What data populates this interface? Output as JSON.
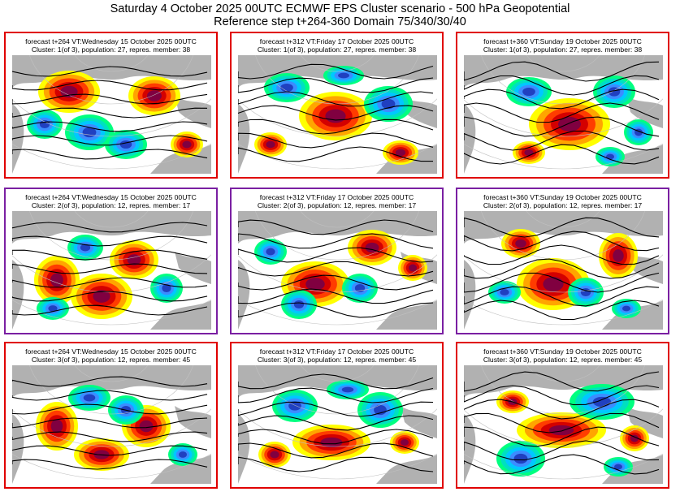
{
  "header": {
    "title": "Saturday 4 October 2025 00UTC ECMWF EPS Cluster scenario - 500 hPa Geopotential",
    "subtitle": "Reference step t+264-360 Domain 75/340/30/40"
  },
  "colors": {
    "cluster_border": [
      "#e00000",
      "#7a1fa2",
      "#e00000"
    ],
    "positive_anomaly": [
      "#ffff00",
      "#ffa500",
      "#ff3c00",
      "#d40000",
      "#800040"
    ],
    "negative_anomaly": [
      "#00ff80",
      "#00e0c0",
      "#00c8ff",
      "#3c8cff",
      "#2040c0"
    ],
    "land": "#a8a8a8",
    "contour": "#000000"
  },
  "panels": [
    {
      "line1": "forecast t+264 VT:Wednesday 15 October 2025 00UTC",
      "line2": "Cluster: 1(of 3), population: 27, repres. member: 38"
    },
    {
      "line1": "forecast t+312 VT:Friday 17 October 2025 00UTC",
      "line2": "Cluster: 1(of 3), population: 27, repres. member: 38"
    },
    {
      "line1": "forecast t+360 VT:Sunday 19 October 2025 00UTC",
      "line2": "Cluster: 1(of 3), population: 27, repres. member: 38"
    },
    {
      "line1": "forecast t+264 VT:Wednesday 15 October 2025 00UTC",
      "line2": "Cluster: 2(of 3), population: 12, repres. member: 17"
    },
    {
      "line1": "forecast t+312 VT:Friday 17 October 2025 00UTC",
      "line2": "Cluster: 2(of 3), population: 12, repres. member: 17"
    },
    {
      "line1": "forecast t+360 VT:Sunday 19 October 2025 00UTC",
      "line2": "Cluster: 2(of 3), population: 12, repres. member: 17"
    },
    {
      "line1": "forecast t+264 VT:Wednesday 15 October 2025 00UTC",
      "line2": "Cluster: 3(of 3), population: 12, repres. member: 45"
    },
    {
      "line1": "forecast t+312 VT:Friday 17 October 2025 00UTC",
      "line2": "Cluster: 3(of 3), population: 12, repres. member: 45"
    },
    {
      "line1": "forecast t+360 VT:Sunday 19 October 2025 00UTC",
      "line2": "Cluster: 3(of 3), population: 12, repres. member: 45"
    }
  ],
  "chart_data": [
    {
      "type": "heatmap",
      "cluster": 1,
      "forecast_step": "t+264",
      "population": 27,
      "repres_member": 38
    },
    {
      "type": "heatmap",
      "cluster": 1,
      "forecast_step": "t+312",
      "population": 27,
      "repres_member": 38
    },
    {
      "type": "heatmap",
      "cluster": 1,
      "forecast_step": "t+360",
      "population": 27,
      "repres_member": 38
    },
    {
      "type": "heatmap",
      "cluster": 2,
      "forecast_step": "t+264",
      "population": 12,
      "repres_member": 17
    },
    {
      "type": "heatmap",
      "cluster": 2,
      "forecast_step": "t+312",
      "population": 12,
      "repres_member": 17
    },
    {
      "type": "heatmap",
      "cluster": 2,
      "forecast_step": "t+360",
      "population": 12,
      "repres_member": 17
    },
    {
      "type": "heatmap",
      "cluster": 3,
      "forecast_step": "t+264",
      "population": 12,
      "repres_member": 45
    },
    {
      "type": "heatmap",
      "cluster": 3,
      "forecast_step": "t+312",
      "population": 12,
      "repres_member": 45
    },
    {
      "type": "heatmap",
      "cluster": 3,
      "forecast_step": "t+360",
      "population": 12,
      "repres_member": 45
    }
  ]
}
